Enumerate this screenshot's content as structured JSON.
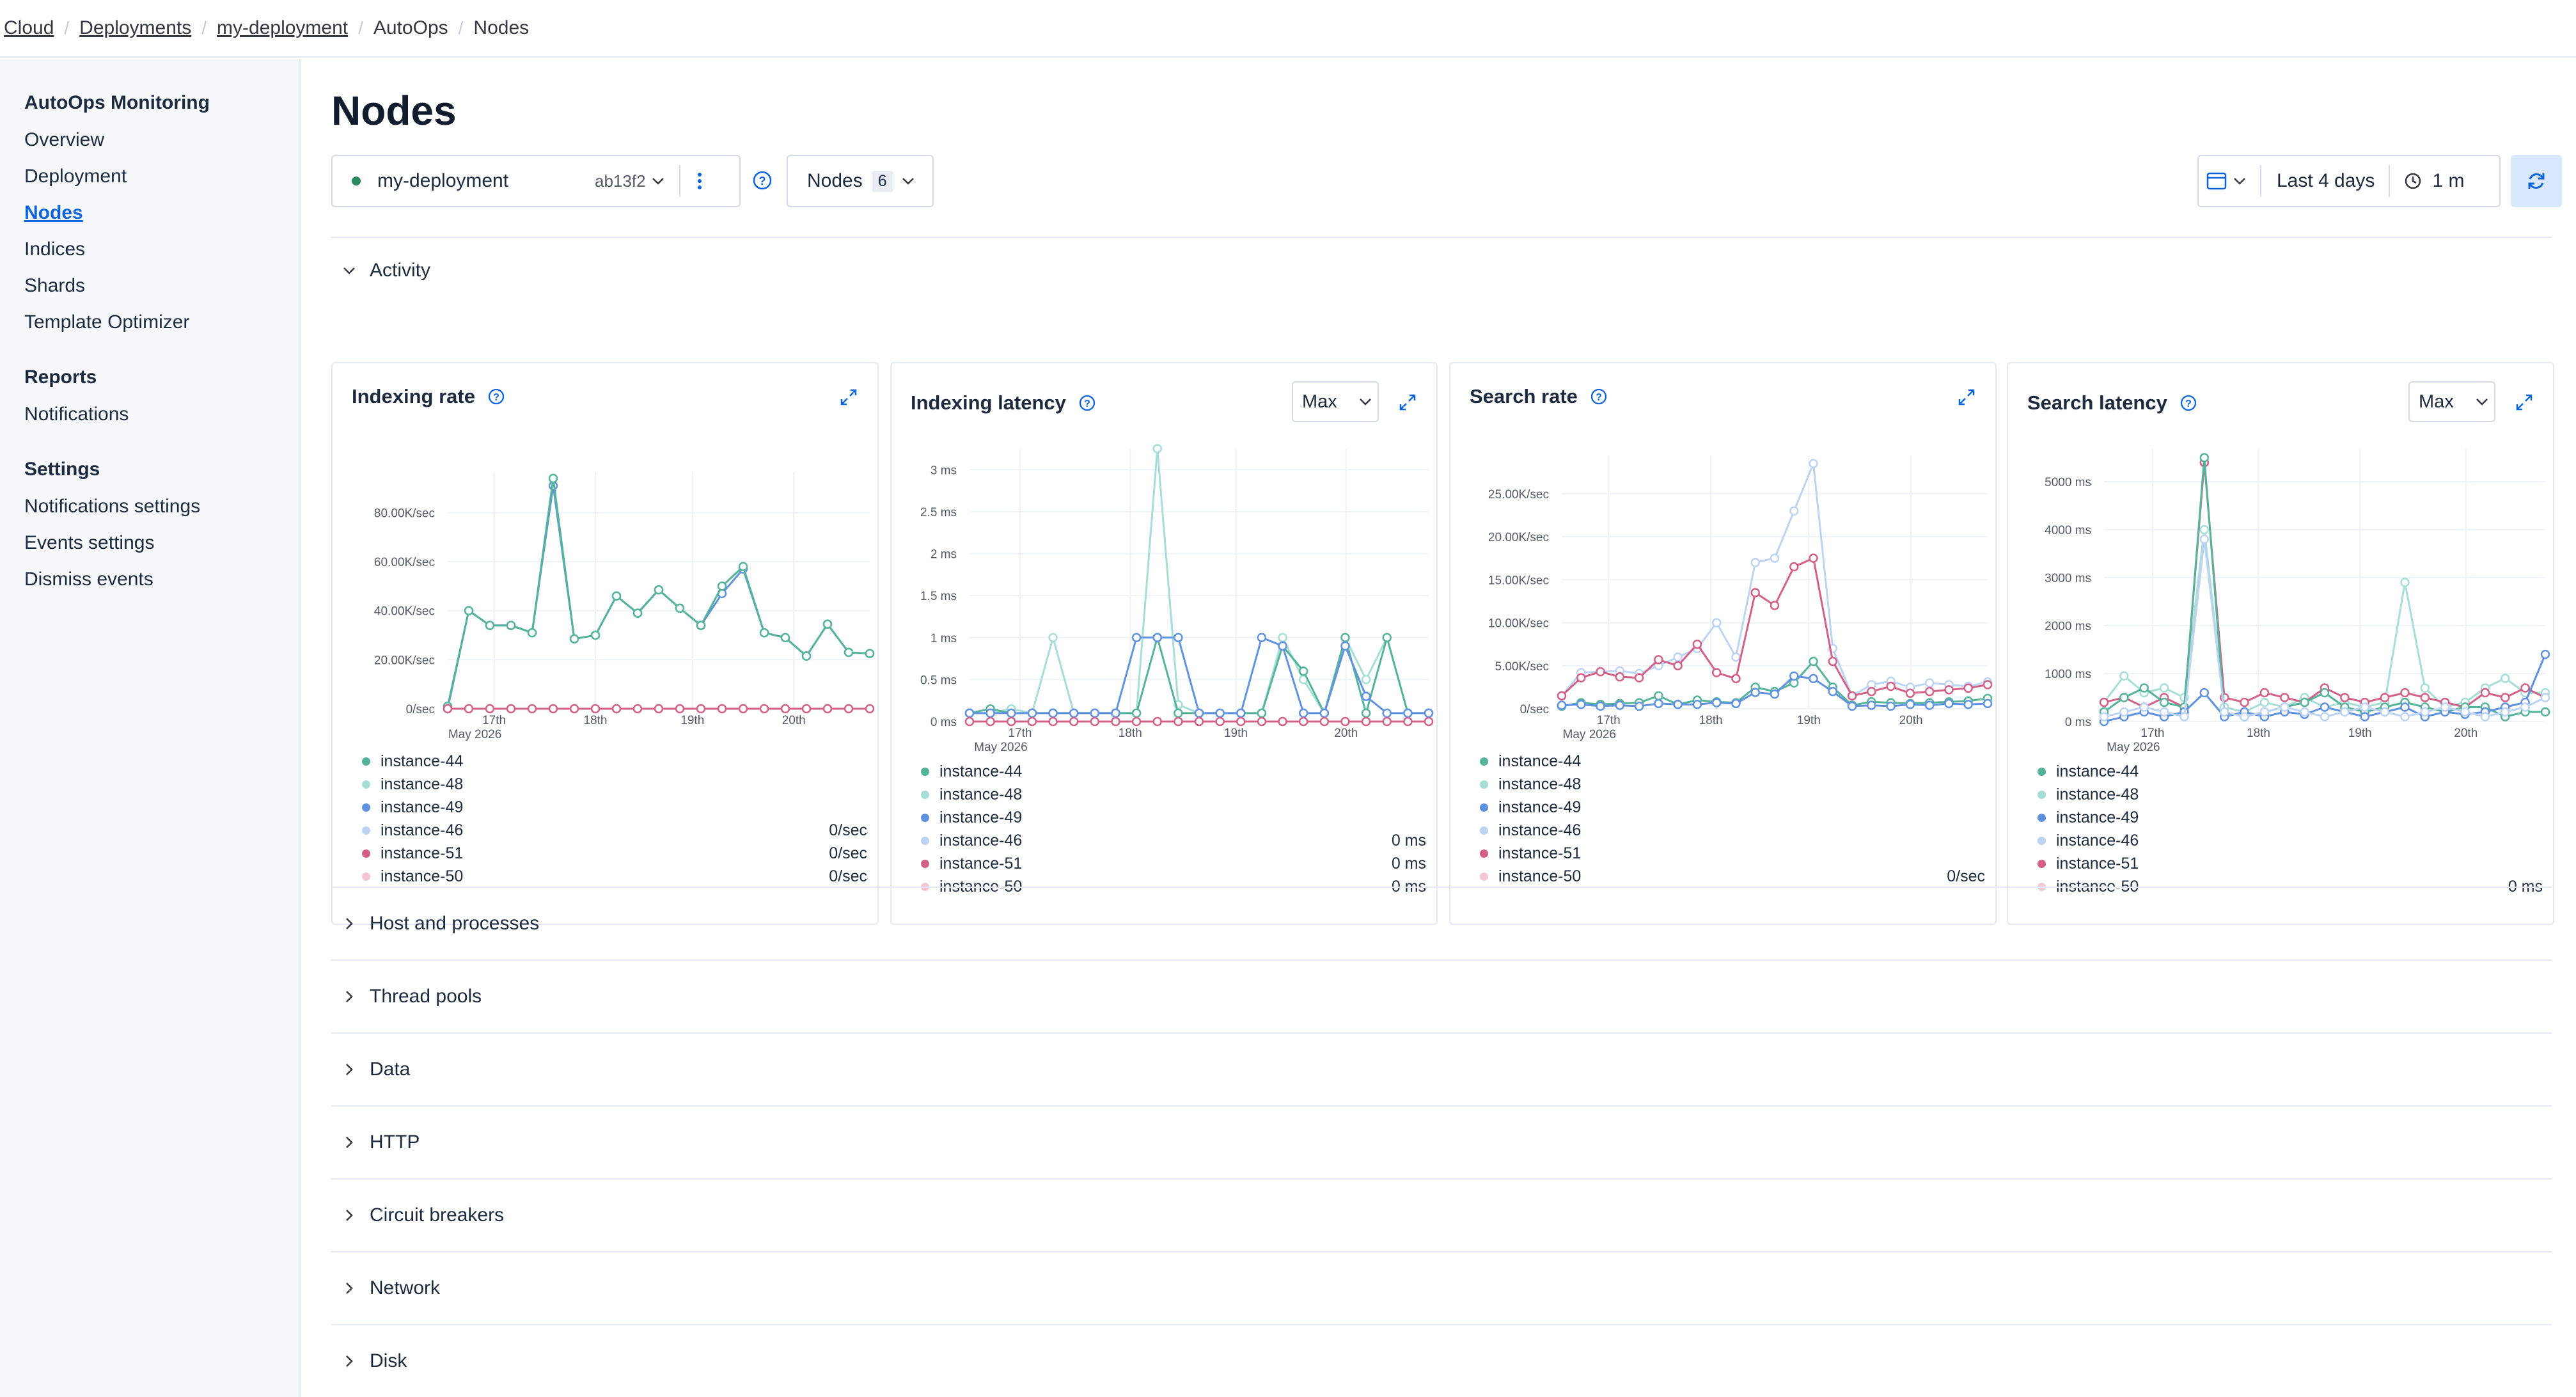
{
  "breadcrumb": {
    "cloud": "Cloud",
    "deployments": "Deployments",
    "deployment": "my-deployment",
    "autoops": "AutoOps",
    "nodes": "Nodes"
  },
  "sidebar": {
    "monitoring_header": "AutoOps Monitoring",
    "monitoring_items": [
      "Overview",
      "Deployment",
      "Nodes",
      "Indices",
      "Shards",
      "Template Optimizer"
    ],
    "reports_header": "Reports",
    "reports_items": [
      "Notifications"
    ],
    "settings_header": "Settings",
    "settings_items": [
      "Notifications settings",
      "Events settings",
      "Dismiss events"
    ]
  },
  "page_title": "Nodes",
  "toolbar": {
    "deployment_name": "my-deployment",
    "deployment_id": "ab13f2",
    "nodes_label": "Nodes",
    "nodes_count": "6",
    "time_range": "Last 4 days",
    "refresh_interval": "1 m"
  },
  "activity_label": "Activity",
  "sections": [
    "Host and processes",
    "Thread pools",
    "Data",
    "HTTP",
    "Circuit breakers",
    "Network",
    "Disk"
  ],
  "colors": {
    "instance-44": "#54b399",
    "instance-48": "#a6ded6",
    "instance-49": "#6092e0",
    "instance-46": "#bdd3f4",
    "instance-51": "#d36086",
    "instance-50": "#f4c6d5",
    "accent": "#0b64dd"
  },
  "chart_data": [
    {
      "type": "line",
      "title": "Indexing rate",
      "x_date_label": "May 2026",
      "x_ticks": [
        "17th",
        "18th",
        "19th",
        "20th"
      ],
      "y_ticks": [
        "0/sec",
        "20.00K/sec",
        "40.00K/sec",
        "60.00K/sec",
        "80.00K/sec"
      ],
      "ylim": [
        0,
        95000
      ],
      "legend": [
        {
          "name": "instance-44",
          "value": ""
        },
        {
          "name": "instance-48",
          "value": ""
        },
        {
          "name": "instance-49",
          "value": ""
        },
        {
          "name": "instance-46",
          "value": "0/sec"
        },
        {
          "name": "instance-51",
          "value": "0/sec"
        },
        {
          "name": "instance-50",
          "value": "0/sec"
        }
      ],
      "series": [
        {
          "name": "instance-49",
          "values": [
            0,
            40000,
            34000,
            34000,
            31000,
            91000,
            28500,
            30000,
            46000,
            39000,
            48500,
            41000,
            34000,
            47000,
            57000,
            31000,
            29000,
            21500,
            34500,
            23000,
            22500
          ]
        },
        {
          "name": "instance-44",
          "values": [
            1000,
            40000,
            34000,
            34000,
            31000,
            94000,
            28500,
            30000,
            46000,
            39000,
            48500,
            41000,
            34000,
            50000,
            58000,
            31000,
            29000,
            21500,
            34500,
            23000,
            22500
          ]
        },
        {
          "name": "instance-51",
          "values": [
            0,
            0,
            0,
            0,
            0,
            0,
            0,
            0,
            0,
            0,
            0,
            0,
            0,
            0,
            0,
            0,
            0,
            0,
            0,
            0,
            0
          ]
        }
      ]
    },
    {
      "type": "line",
      "title": "Indexing latency",
      "aggregation": "Max",
      "x_date_label": "May 2026",
      "x_ticks": [
        "17th",
        "18th",
        "19th",
        "20th"
      ],
      "y_ticks": [
        "0 ms",
        "0.5 ms",
        "1 ms",
        "1.5 ms",
        "2 ms",
        "2.5 ms",
        "3 ms"
      ],
      "ylim": [
        0,
        3.2
      ],
      "legend": [
        {
          "name": "instance-44",
          "value": ""
        },
        {
          "name": "instance-48",
          "value": ""
        },
        {
          "name": "instance-49",
          "value": ""
        },
        {
          "name": "instance-46",
          "value": "0 ms"
        },
        {
          "name": "instance-51",
          "value": "0 ms"
        },
        {
          "name": "instance-50",
          "value": "0 ms"
        }
      ],
      "series": [
        {
          "name": "instance-48",
          "values": [
            0.1,
            0.1,
            0.15,
            0.1,
            1.0,
            0.1,
            0.1,
            0.1,
            0.1,
            3.25,
            0.2,
            0.1,
            0.1,
            0.1,
            0.1,
            1.0,
            0.5,
            0.1,
            1.0,
            0.5,
            1.0,
            0.1,
            0.1
          ]
        },
        {
          "name": "instance-44",
          "values": [
            0.1,
            0.15,
            0.1,
            0.1,
            0.1,
            0.1,
            0.1,
            0.1,
            0.1,
            1.0,
            0.1,
            0.1,
            0.1,
            0.1,
            0.1,
            0.9,
            0.6,
            0.1,
            1.0,
            0.1,
            1.0,
            0.1,
            0.1
          ]
        },
        {
          "name": "instance-49",
          "values": [
            0.1,
            0.1,
            0.1,
            0.1,
            0.1,
            0.1,
            0.1,
            0.1,
            1.0,
            1.0,
            1.0,
            0.1,
            0.1,
            0.1,
            1.0,
            0.9,
            0.1,
            0.1,
            0.9,
            0.3,
            0.1,
            0.1,
            0.1
          ]
        },
        {
          "name": "instance-51",
          "values": [
            0,
            0,
            0,
            0,
            0,
            0,
            0,
            0,
            0,
            0,
            0,
            0,
            0,
            0,
            0,
            0,
            0,
            0,
            0,
            0,
            0,
            0,
            0
          ]
        }
      ]
    },
    {
      "type": "line",
      "title": "Search rate",
      "x_date_label": "May 2026",
      "x_ticks": [
        "17th",
        "18th",
        "19th",
        "20th"
      ],
      "y_ticks": [
        "0/sec",
        "5.00K/sec",
        "10.00K/sec",
        "15.00K/sec",
        "20.00K/sec",
        "25.00K/sec"
      ],
      "ylim": [
        0,
        29000
      ],
      "legend": [
        {
          "name": "instance-44",
          "value": ""
        },
        {
          "name": "instance-48",
          "value": ""
        },
        {
          "name": "instance-49",
          "value": ""
        },
        {
          "name": "instance-46",
          "value": ""
        },
        {
          "name": "instance-51",
          "value": ""
        },
        {
          "name": "instance-50",
          "value": "0/sec"
        }
      ],
      "series": [
        {
          "name": "instance-46",
          "values": [
            1500,
            4200,
            4300,
            4400,
            4100,
            5000,
            6000,
            7000,
            10000,
            6000,
            17000,
            17500,
            23000,
            28500,
            7000,
            1500,
            2800,
            3200,
            2500,
            3000,
            2800,
            2600,
            3100
          ]
        },
        {
          "name": "instance-51",
          "values": [
            1500,
            3600,
            4300,
            3700,
            3600,
            5700,
            5000,
            7500,
            4200,
            3500,
            13500,
            12000,
            16500,
            17500,
            5500,
            1500,
            2000,
            2600,
            1800,
            2000,
            2200,
            2400,
            2800
          ]
        },
        {
          "name": "instance-44",
          "values": [
            300,
            700,
            500,
            600,
            700,
            1500,
            500,
            1000,
            800,
            700,
            2500,
            2000,
            3000,
            5500,
            2500,
            400,
            800,
            700,
            600,
            700,
            800,
            900,
            1200
          ]
        },
        {
          "name": "instance-49",
          "values": [
            400,
            500,
            300,
            400,
            300,
            600,
            500,
            500,
            700,
            600,
            1900,
            1700,
            3800,
            3500,
            2000,
            300,
            400,
            300,
            500,
            400,
            600,
            500,
            600
          ]
        }
      ]
    },
    {
      "type": "line",
      "title": "Search latency",
      "aggregation": "Max",
      "x_date_label": "May 2026",
      "x_ticks": [
        "17th",
        "18th",
        "19th",
        "20th"
      ],
      "y_ticks": [
        "0 ms",
        "1000 ms",
        "2000 ms",
        "3000 ms",
        "4000 ms",
        "5000 ms"
      ],
      "ylim": [
        0,
        5600
      ],
      "legend": [
        {
          "name": "instance-44",
          "value": ""
        },
        {
          "name": "instance-48",
          "value": ""
        },
        {
          "name": "instance-49",
          "value": ""
        },
        {
          "name": "instance-46",
          "value": ""
        },
        {
          "name": "instance-51",
          "value": ""
        },
        {
          "name": "instance-50",
          "value": "0 ms"
        }
      ],
      "series": [
        {
          "name": "instance-48",
          "values": [
            400,
            950,
            600,
            700,
            500,
            4000,
            300,
            200,
            400,
            300,
            500,
            300,
            400,
            300,
            400,
            2900,
            700,
            300,
            400,
            700,
            900,
            600,
            600
          ]
        },
        {
          "name": "instance-51",
          "values": [
            400,
            500,
            300,
            500,
            300,
            5400,
            500,
            400,
            600,
            500,
            400,
            700,
            500,
            400,
            500,
            600,
            500,
            400,
            300,
            600,
            500,
            700,
            500
          ]
        },
        {
          "name": "instance-44",
          "values": [
            200,
            500,
            700,
            400,
            300,
            5500,
            200,
            100,
            200,
            300,
            400,
            600,
            300,
            200,
            300,
            400,
            300,
            200,
            300,
            300,
            100,
            200,
            200
          ]
        },
        {
          "name": "instance-49",
          "values": [
            0,
            100,
            200,
            100,
            200,
            600,
            100,
            200,
            100,
            200,
            150,
            300,
            200,
            100,
            200,
            300,
            100,
            200,
            150,
            200,
            300,
            400,
            1400
          ]
        },
        {
          "name": "instance-46",
          "values": [
            100,
            200,
            300,
            200,
            100,
            3800,
            200,
            100,
            200,
            300,
            200,
            100,
            200,
            300,
            200,
            100,
            200,
            300,
            200,
            100,
            200,
            300,
            500
          ]
        }
      ]
    }
  ]
}
